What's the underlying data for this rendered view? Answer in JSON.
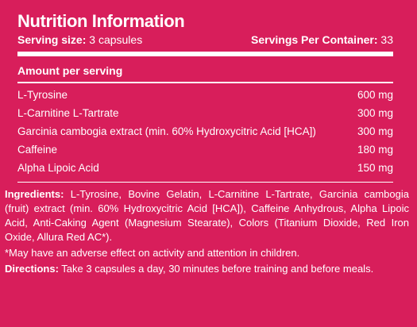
{
  "title": "Nutrition Information",
  "serving": {
    "size_label": "Serving size:",
    "size_value": "3 capsules",
    "per_container_label": "Servings Per Container:",
    "per_container_value": "33"
  },
  "amount_header": "Amount per serving",
  "nutrients": [
    {
      "name": "L-Tyrosine",
      "amount": "600 mg"
    },
    {
      "name": "L-Carnitine L-Tartrate",
      "amount": "300 mg"
    },
    {
      "name": "Garcinia cambogia extract (min. 60% Hydroxycitric Acid [HCA])",
      "amount": "300 mg"
    },
    {
      "name": "Caffeine",
      "amount": "180 mg"
    },
    {
      "name": "Alpha Lipoic Acid",
      "amount": "150 mg"
    }
  ],
  "ingredients": {
    "label": "Ingredients:",
    "text": "L-Tyrosine, Bovine Gelatin, L-Carnitine L-Tartrate, Garcinia cambogia (fruit) extract (min. 60% Hydroxycitric Acid [HCA]), Caffeine Anhydrous, Alpha Lipoic Acid, Anti-Caking Agent (Magnesium Stearate), Colors (Titanium Dioxide, Red Iron Oxide, Allura Red AC*)."
  },
  "warning": "*May have an adverse effect on activity and attention in children.",
  "directions": {
    "label": "Directions:",
    "text": "Take 3 capsules a day, 30 minutes before training and before meals."
  },
  "colors": {
    "background": "#d81e5b",
    "text": "#ffffff"
  }
}
